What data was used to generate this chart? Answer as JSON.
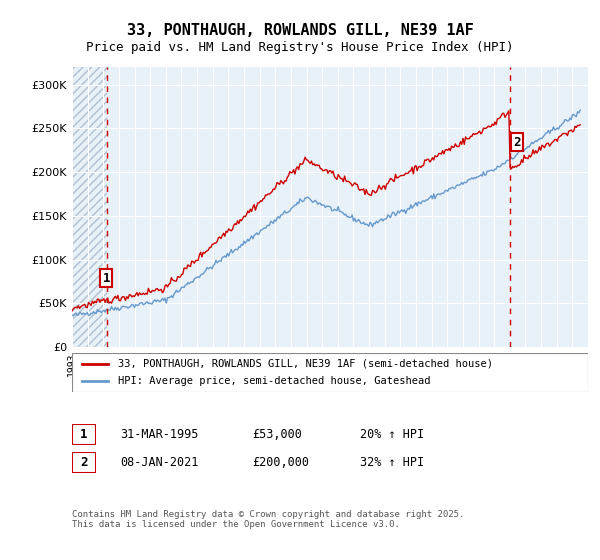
{
  "title": "33, PONTHAUGH, ROWLANDS GILL, NE39 1AF",
  "subtitle": "Price paid vs. HM Land Registry's House Price Index (HPI)",
  "ylabel": "",
  "bg_color": "#e8f0f8",
  "hatch_color": "#c8d8e8",
  "grid_color": "#ffffff",
  "red_line_color": "#cc0000",
  "blue_line_color": "#6699cc",
  "purchase1_date": 1995.25,
  "purchase1_price": 53000,
  "purchase2_date": 2021.02,
  "purchase2_price": 200000,
  "annotation1": "1",
  "annotation2": "2",
  "legend_red": "33, PONTHAUGH, ROWLANDS GILL, NE39 1AF (semi-detached house)",
  "legend_blue": "HPI: Average price, semi-detached house, Gateshead",
  "table_row1_num": "1",
  "table_row1_date": "31-MAR-1995",
  "table_row1_price": "£53,000",
  "table_row1_hpi": "20% ↑ HPI",
  "table_row2_num": "2",
  "table_row2_date": "08-JAN-2021",
  "table_row2_price": "£200,000",
  "table_row2_hpi": "32% ↑ HPI",
  "footer": "Contains HM Land Registry data © Crown copyright and database right 2025.\nThis data is licensed under the Open Government Licence v3.0.",
  "xmin": 1993,
  "xmax": 2026,
  "ymin": 0,
  "ymax": 320000
}
